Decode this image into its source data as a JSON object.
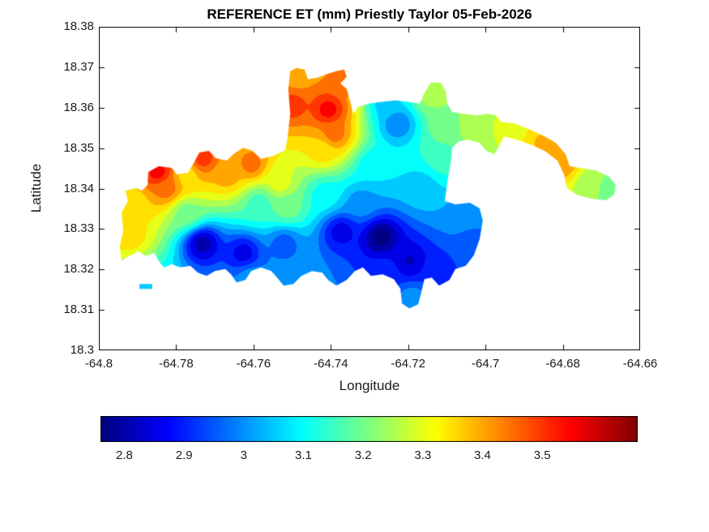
{
  "chart_data": {
    "type": "heatmap",
    "title": "REFERENCE ET (mm) Priestly Taylor 05-Feb-2026",
    "xlabel": "Longitude",
    "ylabel": "Latitude",
    "xlim": [
      -64.8,
      -64.66
    ],
    "ylim": [
      18.3,
      18.38
    ],
    "xticks": [
      -64.8,
      -64.78,
      -64.76,
      -64.74,
      -64.72,
      -64.7,
      -64.68,
      -64.66
    ],
    "xtick_labels": [
      "-64.8",
      "-64.78",
      "-64.76",
      "-64.74",
      "-64.72",
      "-64.7",
      "-64.68",
      "-64.66"
    ],
    "yticks": [
      18.3,
      18.31,
      18.32,
      18.33,
      18.34,
      18.35,
      18.36,
      18.37,
      18.38
    ],
    "ytick_labels": [
      "18.3",
      "18.31",
      "18.32",
      "18.33",
      "18.34",
      "18.35",
      "18.36",
      "18.37",
      "18.38"
    ],
    "grid": false,
    "colorbar": {
      "orientation": "horizontal",
      "colormap": "jet",
      "range": [
        2.76,
        3.66
      ],
      "ticks": [
        2.8,
        2.9,
        3,
        3.1,
        3.2,
        3.3,
        3.4,
        3.5
      ],
      "tick_labels": [
        "2.8",
        "2.9",
        "3",
        "3.1",
        "3.2",
        "3.3",
        "3.4",
        "3.5"
      ],
      "low_color": "#00008f",
      "high_color": "#7f0000"
    },
    "contour_interval": 0.05,
    "island_outline": [
      [
        -64.7941,
        18.3221
      ],
      [
        -64.7946,
        18.3255
      ],
      [
        -64.7937,
        18.3295
      ],
      [
        -64.7941,
        18.3341
      ],
      [
        -64.7925,
        18.3369
      ],
      [
        -64.7931,
        18.3395
      ],
      [
        -64.7904,
        18.3401
      ],
      [
        -64.7889,
        18.3395
      ],
      [
        -64.7874,
        18.3409
      ],
      [
        -64.7872,
        18.3441
      ],
      [
        -64.7845,
        18.3455
      ],
      [
        -64.7811,
        18.3451
      ],
      [
        -64.7799,
        18.3435
      ],
      [
        -64.7769,
        18.3439
      ],
      [
        -64.7757,
        18.3459
      ],
      [
        -64.774,
        18.3489
      ],
      [
        -64.7715,
        18.3493
      ],
      [
        -64.7698,
        18.3475
      ],
      [
        -64.7669,
        18.3469
      ],
      [
        -64.7652,
        18.3485
      ],
      [
        -64.7627,
        18.3501
      ],
      [
        -64.7602,
        18.3493
      ],
      [
        -64.7581,
        18.3473
      ],
      [
        -64.7547,
        18.3481
      ],
      [
        -64.7518,
        18.3495
      ],
      [
        -64.7512,
        18.3525
      ],
      [
        -64.7505,
        18.3585
      ],
      [
        -64.751,
        18.3646
      ],
      [
        -64.7505,
        18.369
      ],
      [
        -64.7489,
        18.3698
      ],
      [
        -64.7468,
        18.3694
      ],
      [
        -64.7459,
        18.367
      ],
      [
        -64.7434,
        18.3674
      ],
      [
        -64.7413,
        18.3682
      ],
      [
        -64.7386,
        18.369
      ],
      [
        -64.7365,
        18.3694
      ],
      [
        -64.7359,
        18.3676
      ],
      [
        -64.7375,
        18.366
      ],
      [
        -64.7359,
        18.3646
      ],
      [
        -64.735,
        18.3616
      ],
      [
        -64.7342,
        18.3585
      ],
      [
        -64.7329,
        18.3602
      ],
      [
        -64.7302,
        18.361
      ],
      [
        -64.7271,
        18.3614
      ],
      [
        -64.7233,
        18.3618
      ],
      [
        -64.7197,
        18.3614
      ],
      [
        -64.717,
        18.361
      ],
      [
        -64.7158,
        18.3636
      ],
      [
        -64.7141,
        18.3662
      ],
      [
        -64.7116,
        18.3662
      ],
      [
        -64.7103,
        18.3642
      ],
      [
        -64.7099,
        18.361
      ],
      [
        -64.7086,
        18.3589
      ],
      [
        -64.7057,
        18.3585
      ],
      [
        -64.7023,
        18.3581
      ],
      [
        -64.6994,
        18.3585
      ],
      [
        -64.6973,
        18.3581
      ],
      [
        -64.696,
        18.3565
      ],
      [
        -64.6925,
        18.3561
      ],
      [
        -64.6883,
        18.3545
      ],
      [
        -64.6847,
        18.3529
      ],
      [
        -64.6818,
        18.3513
      ],
      [
        -64.6793,
        18.3485
      ],
      [
        -64.6782,
        18.3455
      ],
      [
        -64.6757,
        18.3451
      ],
      [
        -64.6715,
        18.3445
      ],
      [
        -64.668,
        18.3429
      ],
      [
        -64.6663,
        18.3409
      ],
      [
        -64.6667,
        18.3385
      ],
      [
        -64.6688,
        18.3371
      ],
      [
        -64.6726,
        18.3375
      ],
      [
        -64.6764,
        18.3385
      ],
      [
        -64.6789,
        18.3401
      ],
      [
        -64.6797,
        18.3435
      ],
      [
        -64.6814,
        18.3469
      ],
      [
        -64.6847,
        18.3493
      ],
      [
        -64.6883,
        18.3509
      ],
      [
        -64.6919,
        18.3521
      ],
      [
        -64.6952,
        18.3529
      ],
      [
        -64.6965,
        18.3505
      ],
      [
        -64.6977,
        18.3485
      ],
      [
        -64.6998,
        18.3493
      ],
      [
        -64.7015,
        18.3513
      ],
      [
        -64.7044,
        18.3521
      ],
      [
        -64.7069,
        18.3517
      ],
      [
        -64.7086,
        18.3501
      ],
      [
        -64.709,
        18.3465
      ],
      [
        -64.7099,
        18.3415
      ],
      [
        -64.7105,
        18.3369
      ],
      [
        -64.7078,
        18.3361
      ],
      [
        -64.704,
        18.3365
      ],
      [
        -64.7015,
        18.3351
      ],
      [
        -64.7007,
        18.3321
      ],
      [
        -64.7015,
        18.3275
      ],
      [
        -64.703,
        18.3235
      ],
      [
        -64.7051,
        18.3209
      ],
      [
        -64.7078,
        18.3201
      ],
      [
        -64.7093,
        18.3174
      ],
      [
        -64.712,
        18.316
      ],
      [
        -64.7139,
        18.318
      ],
      [
        -64.7158,
        18.3176
      ],
      [
        -64.7166,
        18.3144
      ],
      [
        -64.7174,
        18.3114
      ],
      [
        -64.7197,
        18.3104
      ],
      [
        -64.7216,
        18.3116
      ],
      [
        -64.722,
        18.3152
      ],
      [
        -64.7237,
        18.3176
      ],
      [
        -64.7266,
        18.3188
      ],
      [
        -64.7296,
        18.3184
      ],
      [
        -64.7317,
        18.3205
      ],
      [
        -64.7338,
        18.3196
      ],
      [
        -64.7359,
        18.3174
      ],
      [
        -64.7386,
        18.316
      ],
      [
        -64.7407,
        18.3174
      ],
      [
        -64.7422,
        18.3192
      ],
      [
        -64.7449,
        18.3196
      ],
      [
        -64.7476,
        18.3184
      ],
      [
        -64.7497,
        18.3164
      ],
      [
        -64.7522,
        18.316
      ],
      [
        -64.7539,
        18.318
      ],
      [
        -64.7554,
        18.3196
      ],
      [
        -64.7581,
        18.3205
      ],
      [
        -64.7606,
        18.3196
      ],
      [
        -64.7621,
        18.3174
      ],
      [
        -64.7644,
        18.3168
      ],
      [
        -64.7658,
        18.3188
      ],
      [
        -64.7673,
        18.3201
      ],
      [
        -64.77,
        18.3196
      ],
      [
        -64.7721,
        18.3184
      ],
      [
        -64.7744,
        18.3192
      ],
      [
        -64.7763,
        18.3209
      ],
      [
        -64.779,
        18.3205
      ],
      [
        -64.7811,
        18.3213
      ],
      [
        -64.7832,
        18.3205
      ],
      [
        -64.7845,
        18.3221
      ],
      [
        -64.7857,
        18.3241
      ],
      [
        -64.7878,
        18.3233
      ],
      [
        -64.7899,
        18.3245
      ],
      [
        -64.7916,
        18.3235
      ],
      [
        -64.7931,
        18.3229
      ]
    ],
    "islets": [
      [
        [
          -64.7895,
          18.3164
        ],
        [
          -64.7862,
          18.3164
        ],
        [
          -64.7862,
          18.3152
        ],
        [
          -64.7895,
          18.3152
        ]
      ]
    ],
    "control_points": [
      {
        "lon": -64.792,
        "lat": 18.3285,
        "value": 3.35
      },
      {
        "lon": -64.791,
        "lat": 18.3365,
        "value": 3.35
      },
      {
        "lon": -64.7847,
        "lat": 18.3441,
        "value": 3.55
      },
      {
        "lon": -64.7826,
        "lat": 18.3401,
        "value": 3.45
      },
      {
        "lon": -64.7732,
        "lat": 18.3475,
        "value": 3.5
      },
      {
        "lon": -64.7774,
        "lat": 18.3341,
        "value": 3.2
      },
      {
        "lon": -64.7732,
        "lat": 18.3265,
        "value": 2.8
      },
      {
        "lon": -64.7627,
        "lat": 18.3241,
        "value": 2.85
      },
      {
        "lon": -64.7606,
        "lat": 18.3461,
        "value": 3.45
      },
      {
        "lon": -64.7533,
        "lat": 18.3415,
        "value": 3.3
      },
      {
        "lon": -64.7512,
        "lat": 18.3355,
        "value": 3.2
      },
      {
        "lon": -64.7522,
        "lat": 18.3265,
        "value": 2.95
      },
      {
        "lon": -64.7489,
        "lat": 18.3682,
        "value": 3.4
      },
      {
        "lon": -64.7407,
        "lat": 18.3595,
        "value": 3.55
      },
      {
        "lon": -64.7392,
        "lat": 18.3535,
        "value": 3.45
      },
      {
        "lon": -64.7422,
        "lat": 18.3495,
        "value": 3.35
      },
      {
        "lon": -64.7417,
        "lat": 18.3385,
        "value": 3.1
      },
      {
        "lon": -64.7375,
        "lat": 18.3295,
        "value": 2.85
      },
      {
        "lon": -64.7271,
        "lat": 18.3281,
        "value": 2.75
      },
      {
        "lon": -64.7197,
        "lat": 18.3221,
        "value": 2.82
      },
      {
        "lon": -64.7229,
        "lat": 18.3561,
        "value": 2.98
      },
      {
        "lon": -64.7287,
        "lat": 18.3455,
        "value": 3.08
      },
      {
        "lon": -64.7141,
        "lat": 18.3636,
        "value": 3.25
      },
      {
        "lon": -64.7099,
        "lat": 18.3555,
        "value": 3.22
      },
      {
        "lon": -64.7019,
        "lat": 18.3549,
        "value": 3.27
      },
      {
        "lon": -64.6935,
        "lat": 18.3545,
        "value": 3.3
      },
      {
        "lon": -64.6856,
        "lat": 18.3515,
        "value": 3.38
      },
      {
        "lon": -64.6801,
        "lat": 18.3465,
        "value": 3.42
      },
      {
        "lon": -64.673,
        "lat": 18.3413,
        "value": 3.25
      },
      {
        "lon": -64.668,
        "lat": 18.3401,
        "value": 3.2
      },
      {
        "lon": -64.7057,
        "lat": 18.3341,
        "value": 3.0
      },
      {
        "lon": -64.7032,
        "lat": 18.3265,
        "value": 2.95
      },
      {
        "lon": -64.7124,
        "lat": 18.3201,
        "value": 2.9
      },
      {
        "lon": -64.7191,
        "lat": 18.3128,
        "value": 3.0
      },
      {
        "lon": -64.7878,
        "lat": 18.3158,
        "value": 3.05
      },
      {
        "lon": -64.7606,
        "lat": 18.318,
        "value": 3.0
      },
      {
        "lon": -64.726,
        "lat": 18.361,
        "value": 3.05
      },
      {
        "lon": -64.7365,
        "lat": 18.3666,
        "value": 3.45
      },
      {
        "lon": -64.7501,
        "lat": 18.3606,
        "value": 3.5
      },
      {
        "lon": -64.7774,
        "lat": 18.3435,
        "value": 3.35
      },
      {
        "lon": -64.7669,
        "lat": 18.3435,
        "value": 3.4
      },
      {
        "lon": -64.7585,
        "lat": 18.3365,
        "value": 3.15
      },
      {
        "lon": -64.7323,
        "lat": 18.3365,
        "value": 3.0
      },
      {
        "lon": -64.7166,
        "lat": 18.3405,
        "value": 3.05
      },
      {
        "lon": -64.7114,
        "lat": 18.3475,
        "value": 3.15
      },
      {
        "lon": -64.726,
        "lat": 18.3194,
        "value": 2.9
      }
    ]
  }
}
